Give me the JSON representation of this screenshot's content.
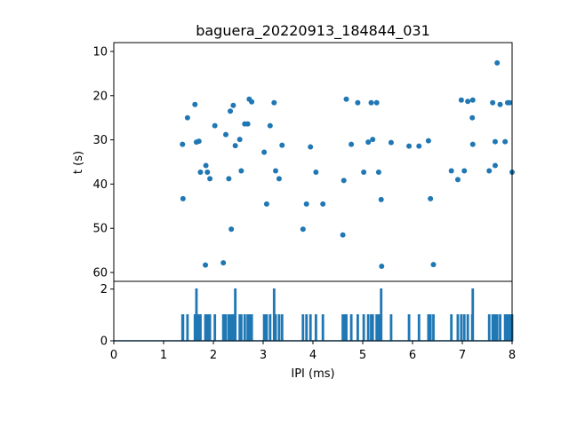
{
  "chart_data": [
    {
      "type": "scatter",
      "title": "baguera_20220913_184844_031",
      "ylabel": "t (s)",
      "xlim": [
        0,
        8
      ],
      "ylim": [
        62,
        8
      ],
      "yticks": [
        10,
        20,
        30,
        40,
        50,
        60
      ],
      "color": "#1f77b4",
      "points": [
        [
          1.38,
          31.0
        ],
        [
          1.39,
          43.3
        ],
        [
          1.48,
          25.0
        ],
        [
          1.63,
          22.0
        ],
        [
          1.66,
          30.5
        ],
        [
          1.71,
          30.3
        ],
        [
          1.74,
          37.3
        ],
        [
          1.84,
          58.3
        ],
        [
          1.85,
          35.8
        ],
        [
          1.88,
          37.3
        ],
        [
          1.93,
          38.8
        ],
        [
          2.03,
          26.8
        ],
        [
          2.2,
          57.8
        ],
        [
          2.25,
          28.8
        ],
        [
          2.31,
          38.8
        ],
        [
          2.34,
          23.5
        ],
        [
          2.36,
          50.2
        ],
        [
          2.4,
          22.2
        ],
        [
          2.44,
          31.3
        ],
        [
          2.53,
          29.9
        ],
        [
          2.56,
          37.0
        ],
        [
          2.63,
          26.4
        ],
        [
          2.69,
          26.4
        ],
        [
          2.72,
          20.8
        ],
        [
          2.77,
          21.4
        ],
        [
          3.02,
          32.8
        ],
        [
          3.07,
          44.5
        ],
        [
          3.14,
          26.8
        ],
        [
          3.22,
          21.6
        ],
        [
          3.25,
          37.0
        ],
        [
          3.32,
          38.8
        ],
        [
          3.38,
          31.2
        ],
        [
          3.8,
          50.2
        ],
        [
          3.87,
          44.5
        ],
        [
          3.95,
          31.6
        ],
        [
          4.06,
          37.3
        ],
        [
          4.2,
          44.5
        ],
        [
          4.6,
          51.5
        ],
        [
          4.62,
          39.2
        ],
        [
          4.67,
          20.8
        ],
        [
          4.77,
          31.0
        ],
        [
          4.9,
          21.6
        ],
        [
          5.02,
          37.3
        ],
        [
          5.11,
          30.5
        ],
        [
          5.17,
          21.6
        ],
        [
          5.2,
          29.9
        ],
        [
          5.28,
          21.6
        ],
        [
          5.32,
          37.3
        ],
        [
          5.37,
          43.5
        ],
        [
          5.38,
          58.6
        ],
        [
          5.57,
          30.6
        ],
        [
          5.93,
          31.4
        ],
        [
          6.13,
          31.4
        ],
        [
          6.32,
          30.2
        ],
        [
          6.36,
          43.3
        ],
        [
          6.42,
          58.2
        ],
        [
          6.78,
          37.0
        ],
        [
          6.91,
          39.0
        ],
        [
          6.98,
          21.0
        ],
        [
          7.04,
          37.0
        ],
        [
          7.11,
          21.3
        ],
        [
          7.2,
          25.0
        ],
        [
          7.21,
          21.0
        ],
        [
          7.21,
          31.0
        ],
        [
          7.54,
          37.0
        ],
        [
          7.61,
          21.6
        ],
        [
          7.66,
          30.4
        ],
        [
          7.66,
          35.8
        ],
        [
          7.7,
          12.6
        ],
        [
          7.76,
          22.0
        ],
        [
          7.86,
          30.4
        ],
        [
          7.91,
          21.6
        ],
        [
          7.95,
          21.6
        ],
        [
          8.0,
          37.3
        ]
      ]
    },
    {
      "type": "line",
      "xlabel": "IPI (ms)",
      "xlim": [
        0,
        8
      ],
      "ylim": [
        0,
        2.3
      ],
      "xticks": [
        0,
        1,
        2,
        3,
        4,
        5,
        6,
        7,
        8
      ],
      "yticks": [
        0,
        2
      ],
      "color": "#1f77b4",
      "spikes": [
        [
          1.38,
          1
        ],
        [
          1.39,
          1
        ],
        [
          1.48,
          1
        ],
        [
          1.63,
          1
        ],
        [
          1.66,
          2
        ],
        [
          1.71,
          1
        ],
        [
          1.74,
          1
        ],
        [
          1.84,
          1
        ],
        [
          1.85,
          1
        ],
        [
          1.88,
          1
        ],
        [
          1.93,
          1
        ],
        [
          2.03,
          1
        ],
        [
          2.2,
          1
        ],
        [
          2.25,
          1
        ],
        [
          2.31,
          1
        ],
        [
          2.34,
          1
        ],
        [
          2.36,
          1
        ],
        [
          2.4,
          1
        ],
        [
          2.44,
          2
        ],
        [
          2.53,
          1
        ],
        [
          2.56,
          1
        ],
        [
          2.63,
          1
        ],
        [
          2.69,
          1
        ],
        [
          2.72,
          1
        ],
        [
          2.77,
          1
        ],
        [
          3.02,
          1
        ],
        [
          3.07,
          1
        ],
        [
          3.14,
          1
        ],
        [
          3.22,
          2
        ],
        [
          3.25,
          1
        ],
        [
          3.32,
          1
        ],
        [
          3.38,
          1
        ],
        [
          3.8,
          1
        ],
        [
          3.87,
          1
        ],
        [
          3.95,
          1
        ],
        [
          4.06,
          1
        ],
        [
          4.2,
          1
        ],
        [
          4.6,
          1
        ],
        [
          4.62,
          1
        ],
        [
          4.67,
          1
        ],
        [
          4.77,
          1
        ],
        [
          4.9,
          1
        ],
        [
          5.02,
          1
        ],
        [
          5.11,
          1
        ],
        [
          5.17,
          1
        ],
        [
          5.2,
          1
        ],
        [
          5.28,
          1
        ],
        [
          5.32,
          1
        ],
        [
          5.37,
          2
        ],
        [
          5.57,
          1
        ],
        [
          5.93,
          1
        ],
        [
          6.13,
          1
        ],
        [
          6.32,
          1
        ],
        [
          6.36,
          1
        ],
        [
          6.42,
          1
        ],
        [
          6.78,
          1
        ],
        [
          6.91,
          1
        ],
        [
          6.98,
          1
        ],
        [
          7.04,
          1
        ],
        [
          7.11,
          1
        ],
        [
          7.2,
          1
        ],
        [
          7.21,
          2
        ],
        [
          7.54,
          1
        ],
        [
          7.61,
          1
        ],
        [
          7.66,
          1
        ],
        [
          7.7,
          1
        ],
        [
          7.76,
          1
        ],
        [
          7.86,
          1
        ],
        [
          7.91,
          1
        ],
        [
          7.95,
          1
        ],
        [
          8.0,
          1
        ]
      ]
    }
  ]
}
